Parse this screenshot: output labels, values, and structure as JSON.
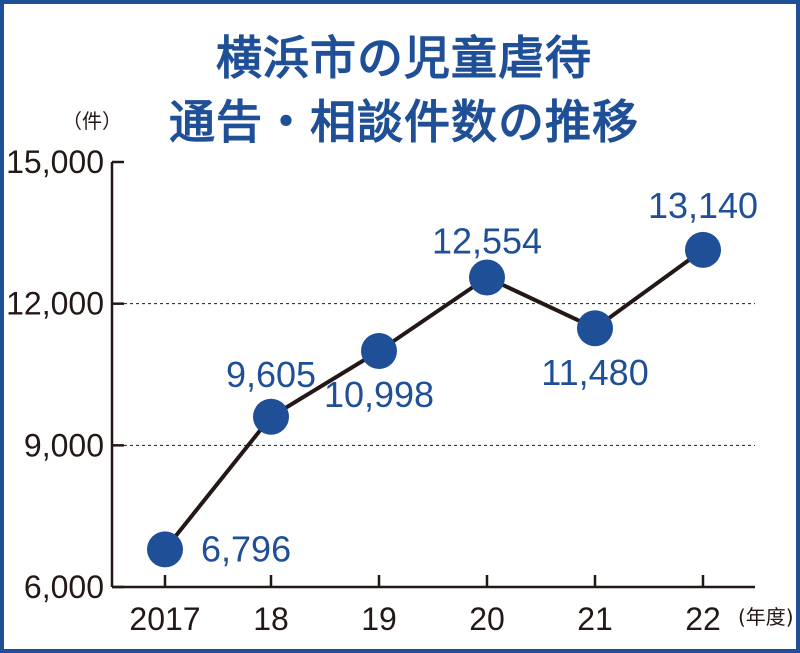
{
  "title_line1": "横浜市の児童虐待",
  "title_line2": "通告・相談件数の推移",
  "y_unit": "（件）",
  "x_unit": "(年度)",
  "colors": {
    "accent": "#1f4f96",
    "line": "#231815"
  },
  "chart_data": {
    "type": "line",
    "categories": [
      "2017",
      "18",
      "19",
      "20",
      "21",
      "22"
    ],
    "values": [
      6796,
      9605,
      10998,
      12554,
      11480,
      13140
    ],
    "value_labels": [
      "6,796",
      "9,605",
      "10,998",
      "12,554",
      "11,480",
      "13,140"
    ],
    "y_ticks": [
      6000,
      9000,
      12000,
      15000
    ],
    "y_tick_labels": [
      "6,000",
      "9,000",
      "12,000",
      "15,000"
    ],
    "ylim": [
      6000,
      15000
    ],
    "grid": "dashed at 9,000 and 12,000"
  }
}
